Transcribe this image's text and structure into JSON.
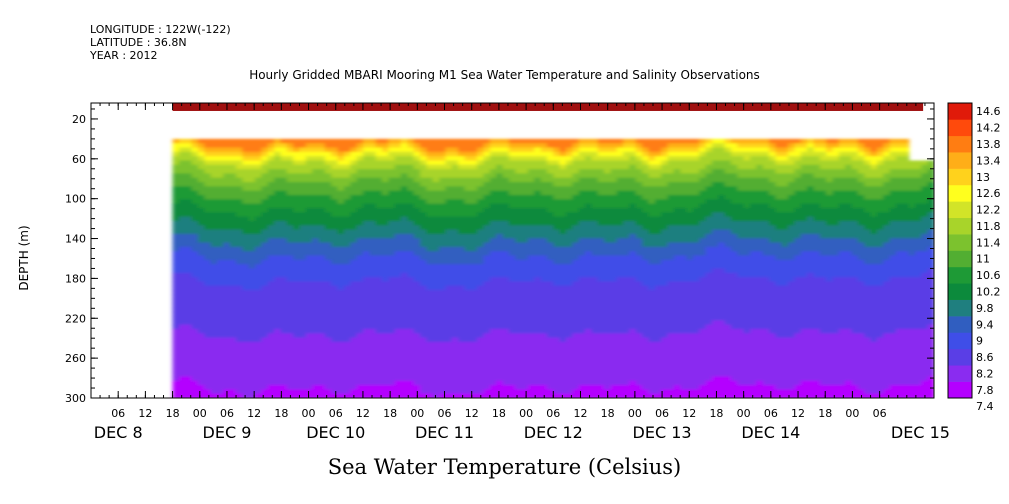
{
  "header": {
    "longitude": "LONGITUDE : 122W(-122)",
    "latitude": "LATITUDE : 36.8N",
    "year": "YEAR : 2012"
  },
  "chart_data": {
    "type": "heatmap",
    "title": "Hourly Gridded MBARI Mooring M1 Sea Water Temperature and Salinity Observations",
    "xlabel": "Sea Water Temperature (Celsius)",
    "ylabel": "DEPTH (m)",
    "y_axis": {
      "range": [
        0,
        300
      ],
      "inverted": true,
      "ticks": [
        20,
        60,
        100,
        140,
        180,
        220,
        260,
        300
      ]
    },
    "x_axis": {
      "hour_ticks": [
        "06",
        "12",
        "18",
        "00",
        "06",
        "12",
        "18",
        "00",
        "06",
        "12",
        "18",
        "00",
        "06",
        "12",
        "18",
        "00",
        "06",
        "12",
        "18",
        "00",
        "06",
        "12",
        "18",
        "00",
        "06",
        "12",
        "18",
        "00",
        "06"
      ],
      "day_labels": [
        "DEC  8",
        "DEC  9",
        "DEC 10",
        "DEC 11",
        "DEC 12",
        "DEC 13",
        "DEC 14",
        "DEC 15"
      ],
      "range_hours": [
        -18,
        168
      ]
    },
    "colorbar": {
      "levels": [
        7.4,
        7.8,
        8.2,
        8.6,
        9,
        9.4,
        9.8,
        10.2,
        10.6,
        11,
        11.4,
        11.8,
        12.2,
        12.6,
        13,
        13.4,
        13.8,
        14.2,
        14.6
      ],
      "labels": [
        "14.6",
        "14.2",
        "13.8",
        "13.4",
        "13",
        "12.6",
        "12.2",
        "11.8",
        "11.4",
        "11",
        "10.6",
        "10.2",
        "9.8",
        "9.4",
        "9",
        "8.6",
        "8.2",
        "7.8",
        "7.4"
      ]
    },
    "data_profile": {
      "description_free": true,
      "surface_band": {
        "depth": [
          5,
          12
        ],
        "value": 14.6
      },
      "data_start_depth": 40,
      "depth_points": [
        40,
        50,
        60,
        80,
        100,
        120,
        140,
        160,
        180,
        220,
        260,
        300
      ],
      "values_typical": [
        13.6,
        12.6,
        11.8,
        11.0,
        10.4,
        9.9,
        9.4,
        8.9,
        8.6,
        8.3,
        8.0,
        7.7
      ]
    }
  }
}
